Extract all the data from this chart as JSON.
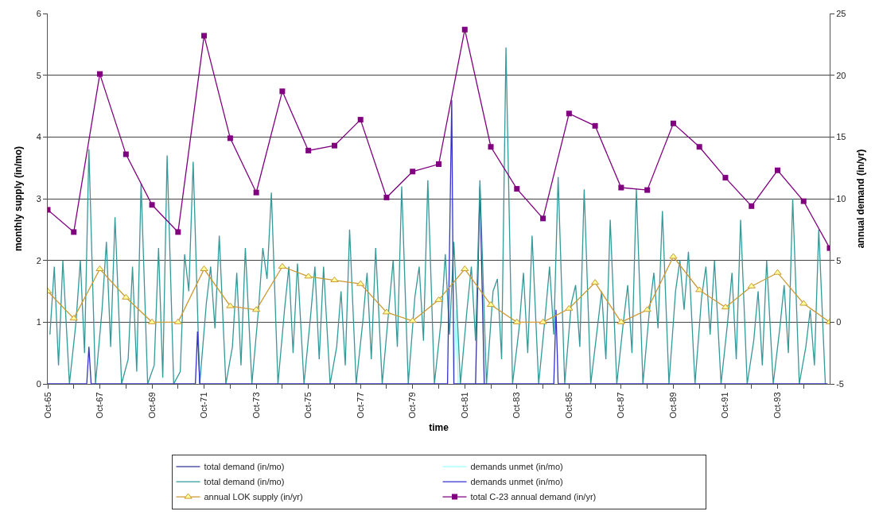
{
  "chart_data": {
    "type": "line",
    "xlabel": "time",
    "ylabel": "monthly supply (in/mo)",
    "y2label": "annual demand (in/yr)",
    "xlim": [
      "1965-10",
      "1995-10"
    ],
    "xticks": [
      {
        "value": "1965-10",
        "label": "Oct-65"
      },
      {
        "value": "1966-10",
        "label": null
      },
      {
        "value": "1967-10",
        "label": "Oct-67"
      },
      {
        "value": "1968-10",
        "label": null
      },
      {
        "value": "1969-10",
        "label": "Oct-69"
      },
      {
        "value": "1970-10",
        "label": null
      },
      {
        "value": "1971-10",
        "label": "Oct-71"
      },
      {
        "value": "1972-10",
        "label": null
      },
      {
        "value": "1973-10",
        "label": "Oct-73"
      },
      {
        "value": "1974-10",
        "label": null
      },
      {
        "value": "1975-10",
        "label": "Oct-75"
      },
      {
        "value": "1976-10",
        "label": null
      },
      {
        "value": "1977-10",
        "label": "Oct-77"
      },
      {
        "value": "1978-10",
        "label": null
      },
      {
        "value": "1979-10",
        "label": "Oct-79"
      },
      {
        "value": "1980-10",
        "label": null
      },
      {
        "value": "1981-10",
        "label": "Oct-81"
      },
      {
        "value": "1982-10",
        "label": null
      },
      {
        "value": "1983-10",
        "label": "Oct-83"
      },
      {
        "value": "1984-10",
        "label": null
      },
      {
        "value": "1985-10",
        "label": "Oct-85"
      },
      {
        "value": "1986-10",
        "label": null
      },
      {
        "value": "1987-10",
        "label": "Oct-87"
      },
      {
        "value": "1988-10",
        "label": null
      },
      {
        "value": "1989-10",
        "label": "Oct-89"
      },
      {
        "value": "1990-10",
        "label": null
      },
      {
        "value": "1991-10",
        "label": "Oct-91"
      },
      {
        "value": "1992-10",
        "label": null
      },
      {
        "value": "1993-10",
        "label": "Oct-93"
      },
      {
        "value": "1994-10",
        "label": null
      }
    ],
    "ylim": [
      0,
      6
    ],
    "yticks": [
      0,
      1,
      2,
      3,
      4,
      5,
      6
    ],
    "y2lim": [
      -5,
      25
    ],
    "y2ticks": [
      -5,
      0,
      5,
      10,
      15,
      20,
      25
    ],
    "grid": "y",
    "legend": "bottom",
    "series": [
      {
        "name": "total demand (in/mo)",
        "color": "#333399",
        "marker": "none",
        "x": [
          "1982-03",
          "1982-05",
          "1982-07"
        ],
        "values": [
          0,
          3.2,
          0
        ]
      },
      {
        "name": "demands unmet (in/mo)",
        "color": "#99ffff",
        "marker": "none",
        "x": [
          "1981-05",
          "1981-06",
          "1981-07"
        ],
        "values": [
          0,
          1.2,
          0
        ]
      },
      {
        "name": "total demand (in/mo)",
        "color": "#339999",
        "marker": "none",
        "x": [
          "1965-11",
          "1966-01",
          "1966-03",
          "1966-05",
          "1966-08",
          "1966-11",
          "1967-01",
          "1967-03",
          "1967-05",
          "1967-08",
          "1967-11",
          "1968-01",
          "1968-03",
          "1968-05",
          "1968-08",
          "1968-11",
          "1969-01",
          "1969-03",
          "1969-05",
          "1969-08",
          "1969-11",
          "1970-01",
          "1970-03",
          "1970-05",
          "1970-08",
          "1970-11",
          "1971-01",
          "1971-03",
          "1971-05",
          "1971-08",
          "1971-11",
          "1972-01",
          "1972-03",
          "1972-05",
          "1972-08",
          "1972-11",
          "1973-01",
          "1973-03",
          "1973-05",
          "1973-08",
          "1973-11",
          "1974-01",
          "1974-03",
          "1974-05",
          "1974-08",
          "1974-11",
          "1975-01",
          "1975-03",
          "1975-05",
          "1975-08",
          "1975-11",
          "1976-01",
          "1976-03",
          "1976-05",
          "1976-08",
          "1976-11",
          "1977-01",
          "1977-03",
          "1977-05",
          "1977-08",
          "1977-11",
          "1978-01",
          "1978-03",
          "1978-05",
          "1978-08",
          "1978-11",
          "1979-01",
          "1979-03",
          "1979-05",
          "1979-08",
          "1979-11",
          "1980-01",
          "1980-03",
          "1980-05",
          "1980-08",
          "1980-11",
          "1981-01",
          "1981-03",
          "1981-05",
          "1981-08",
          "1981-11",
          "1982-01",
          "1982-03",
          "1982-05",
          "1982-08",
          "1982-11",
          "1983-01",
          "1983-03",
          "1983-05",
          "1983-08",
          "1983-11",
          "1984-01",
          "1984-03",
          "1984-05",
          "1984-08",
          "1984-11",
          "1985-01",
          "1985-03",
          "1985-05",
          "1985-08",
          "1985-11",
          "1986-01",
          "1986-03",
          "1986-05",
          "1986-08",
          "1986-11",
          "1987-01",
          "1987-03",
          "1987-05",
          "1987-08",
          "1987-11",
          "1988-01",
          "1988-03",
          "1988-05",
          "1988-08",
          "1988-11",
          "1989-01",
          "1989-03",
          "1989-05",
          "1989-08",
          "1989-11",
          "1990-01",
          "1990-03",
          "1990-05",
          "1990-08",
          "1990-11",
          "1991-01",
          "1991-03",
          "1991-05",
          "1991-08",
          "1991-11",
          "1992-01",
          "1992-03",
          "1992-05",
          "1992-08",
          "1992-11",
          "1993-01",
          "1993-03",
          "1993-05",
          "1993-08",
          "1993-11",
          "1994-01",
          "1994-03",
          "1994-05",
          "1994-08",
          "1994-11",
          "1995-01",
          "1995-03",
          "1995-05",
          "1995-08"
        ],
        "values": [
          0.8,
          1.9,
          0.3,
          2.0,
          0,
          1.0,
          2.0,
          0.5,
          3.8,
          0,
          1.2,
          2.3,
          0.6,
          2.7,
          0,
          0.4,
          1.9,
          0.2,
          3.25,
          0,
          0.3,
          2.2,
          0.1,
          3.7,
          0,
          0.2,
          2.1,
          1.5,
          3.6,
          0,
          1.3,
          1.9,
          0.9,
          2.4,
          0,
          0.6,
          1.8,
          0.3,
          2.2,
          0,
          1.2,
          2.2,
          1.7,
          3.1,
          0,
          1.2,
          1.9,
          0.5,
          1.95,
          0,
          1.1,
          1.9,
          0.4,
          1.9,
          0,
          0.6,
          1.5,
          0.3,
          2.5,
          0,
          1.0,
          1.8,
          0.4,
          2.2,
          0,
          1.2,
          2.0,
          0.6,
          3.2,
          0,
          1.4,
          1.9,
          0.7,
          3.3,
          0,
          1.0,
          2.1,
          0.8,
          2.3,
          0,
          1.2,
          1.9,
          0.7,
          3.3,
          0,
          1.5,
          1.7,
          0.4,
          5.45,
          0,
          0.9,
          1.8,
          0.5,
          2.4,
          0,
          1.1,
          1.9,
          0.8,
          3.35,
          0,
          1.3,
          1.6,
          0.6,
          3.15,
          0,
          0.9,
          1.5,
          0.4,
          2.66,
          0,
          1.0,
          1.6,
          0.5,
          3.16,
          0,
          1.2,
          1.8,
          0.9,
          2.8,
          0,
          1.5,
          2.0,
          1.2,
          2.14,
          0,
          1.4,
          1.9,
          0.8,
          2.0,
          0,
          1.0,
          1.8,
          0.4,
          2.66,
          0,
          0.7,
          1.5,
          0.3,
          2.0,
          0,
          0.9,
          1.6,
          0.5,
          3.0,
          0,
          0.6,
          1.2,
          0.3,
          2.5,
          0
        ]
      },
      {
        "name": "demands unmet (in/mo)",
        "color": "#3333cc",
        "marker": "none",
        "x": [
          "1965-10",
          "1967-04",
          "1967-05",
          "1967-06",
          "1971-06",
          "1971-07",
          "1971-08",
          "1981-02",
          "1981-04",
          "1981-05",
          "1985-03",
          "1985-04",
          "1985-05",
          "1995-09"
        ],
        "values": [
          0,
          0,
          0.6,
          0,
          0,
          0.85,
          0,
          0,
          4.6,
          0,
          0,
          1.2,
          0,
          0
        ]
      },
      {
        "name": "annual LOK supply (in/yr)",
        "color": "#cc9933",
        "marker": "triangle",
        "axis": "y2",
        "x": [
          "1965-10",
          "1966-10",
          "1967-10",
          "1968-10",
          "1969-10",
          "1970-10",
          "1971-10",
          "1972-10",
          "1973-10",
          "1974-10",
          "1975-10",
          "1976-10",
          "1977-10",
          "1978-10",
          "1979-10",
          "1980-10",
          "1981-10",
          "1982-10",
          "1983-10",
          "1984-10",
          "1985-10",
          "1986-10",
          "1987-10",
          "1988-10",
          "1989-10",
          "1990-10",
          "1991-10",
          "1992-10",
          "1993-10",
          "1994-10",
          "1995-10"
        ],
        "values": [
          2.5,
          0.3,
          4.3,
          2.0,
          0,
          0,
          4.3,
          1.3,
          1.0,
          4.5,
          3.7,
          3.4,
          3.1,
          0.8,
          0.1,
          1.8,
          4.3,
          1.4,
          0,
          0,
          1.1,
          3.2,
          0,
          1.0,
          5.3,
          2.6,
          1.2,
          2.9,
          4.0,
          1.5,
          0
        ]
      },
      {
        "name": "total C-23 annual demand (in/yr)",
        "color": "#800080",
        "marker": "square",
        "axis": "y2",
        "x": [
          "1965-10",
          "1966-10",
          "1967-10",
          "1968-10",
          "1969-10",
          "1970-10",
          "1971-10",
          "1972-10",
          "1973-10",
          "1974-10",
          "1975-10",
          "1976-10",
          "1977-10",
          "1978-10",
          "1979-10",
          "1980-10",
          "1981-10",
          "1982-10",
          "1983-10",
          "1984-10",
          "1985-10",
          "1986-10",
          "1987-10",
          "1988-10",
          "1989-10",
          "1990-10",
          "1991-10",
          "1992-10",
          "1993-10",
          "1994-10",
          "1995-10"
        ],
        "values": [
          9.1,
          7.3,
          20.1,
          13.6,
          9.5,
          7.3,
          23.2,
          14.9,
          10.5,
          18.7,
          13.9,
          14.3,
          16.4,
          10.1,
          12.2,
          12.8,
          23.7,
          14.2,
          10.8,
          8.4,
          16.9,
          15.9,
          10.9,
          10.7,
          16.1,
          14.2,
          11.7,
          9.4,
          12.3,
          9.8,
          6.0
        ]
      }
    ]
  }
}
